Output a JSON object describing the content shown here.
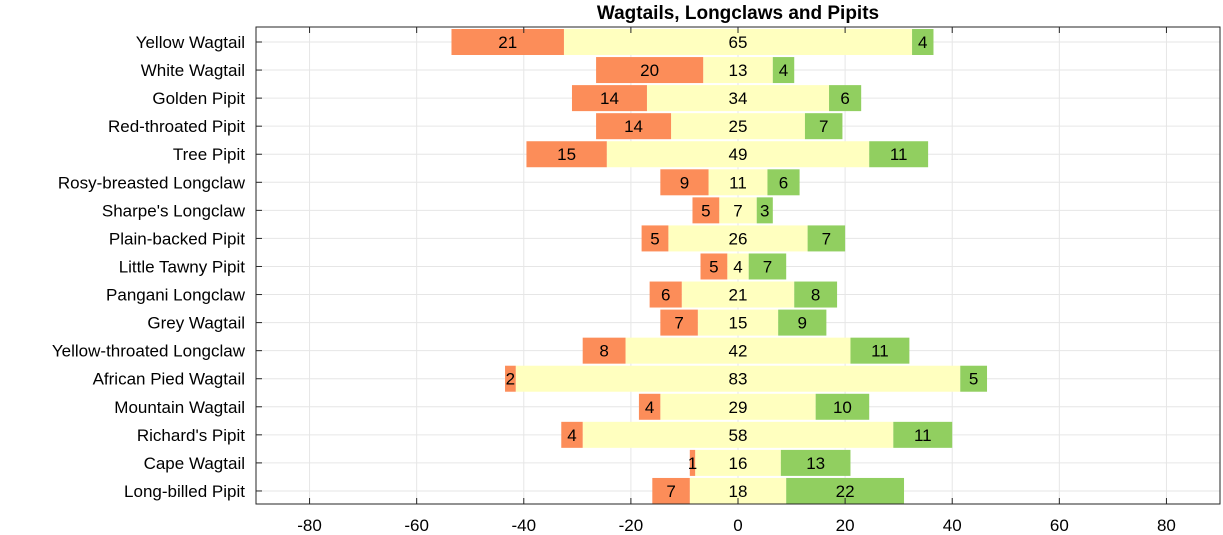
{
  "chart_data": {
    "type": "bar",
    "orientation": "horizontal",
    "stacking": "diverging-centered",
    "title": "Wagtails, Longclaws and Pipits",
    "xlabel": "",
    "ylabel": "",
    "xlim": [
      -90,
      90
    ],
    "xticks": [
      -80,
      -60,
      -40,
      -20,
      0,
      20,
      40,
      60,
      80
    ],
    "xtick_labels": [
      "-80",
      "-60",
      "-40",
      "-20",
      "0",
      "20",
      "40",
      "60",
      "80"
    ],
    "grid": true,
    "legend": "none",
    "categories": [
      "Yellow Wagtail",
      "White Wagtail",
      "Golden Pipit",
      "Red-throated Pipit",
      "Tree Pipit",
      "Rosy-breasted Longclaw",
      "Sharpe's Longclaw",
      "Plain-backed Pipit",
      "Little Tawny Pipit",
      "Pangani Longclaw",
      "Grey Wagtail",
      "Yellow-throated Longclaw",
      "African Pied Wagtail",
      "Mountain Wagtail",
      "Richard's Pipit",
      "Cape Wagtail",
      "Long-billed Pipit"
    ],
    "series": [
      {
        "color": "#fc8d59",
        "position": "left",
        "values": [
          21,
          20,
          14,
          14,
          15,
          9,
          5,
          5,
          5,
          6,
          7,
          8,
          2,
          4,
          4,
          1,
          7
        ]
      },
      {
        "color": "#ffffbf",
        "position": "center",
        "values": [
          65,
          13,
          34,
          25,
          49,
          11,
          7,
          26,
          4,
          21,
          15,
          42,
          83,
          29,
          58,
          16,
          18
        ]
      },
      {
        "color": "#91cf60",
        "position": "right",
        "values": [
          4,
          4,
          6,
          7,
          11,
          6,
          3,
          7,
          7,
          8,
          9,
          11,
          5,
          10,
          11,
          13,
          22
        ]
      }
    ]
  }
}
